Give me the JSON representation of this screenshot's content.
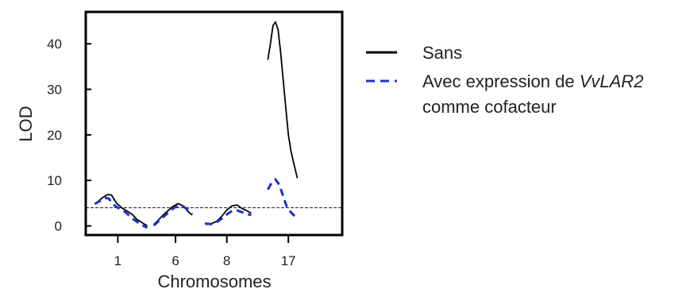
{
  "chart_data": {
    "type": "line",
    "ylabel": "LOD",
    "xlabel": "Chromosomes",
    "xlim": [
      0,
      20
    ],
    "ylim": [
      -2,
      47
    ],
    "yticks": [
      0,
      10,
      20,
      30,
      40
    ],
    "x_ticks": [
      {
        "pos": 2.5,
        "label": "1"
      },
      {
        "pos": 7.0,
        "label": "6"
      },
      {
        "pos": 11.0,
        "label": "8"
      },
      {
        "pos": 15.8,
        "label": "17"
      }
    ],
    "threshold": {
      "value": 4.0,
      "color": "#1a1a4a"
    },
    "grid": false,
    "legend_position": "right",
    "series": [
      {
        "name": "Sans",
        "color": "#000000",
        "dash": false,
        "segments": [
          [
            [
              0.9,
              5.2
            ],
            [
              1.3,
              6.2
            ],
            [
              1.7,
              6.9
            ],
            [
              2.0,
              6.8
            ],
            [
              2.4,
              5.0
            ],
            [
              2.8,
              4.0
            ],
            [
              3.2,
              3.3
            ],
            [
              3.6,
              2.6
            ],
            [
              4.0,
              1.4
            ],
            [
              4.4,
              0.7
            ],
            [
              4.8,
              0.0
            ]
          ],
          [
            [
              5.3,
              0.3
            ],
            [
              5.7,
              1.4
            ],
            [
              6.0,
              2.3
            ],
            [
              6.4,
              3.3
            ],
            [
              6.8,
              4.3
            ],
            [
              7.2,
              4.9
            ],
            [
              7.6,
              4.4
            ],
            [
              8.0,
              3.1
            ],
            [
              8.3,
              2.4
            ]
          ],
          [
            [
              9.3,
              0.6
            ],
            [
              9.8,
              0.5
            ],
            [
              10.2,
              1.0
            ],
            [
              10.6,
              2.1
            ],
            [
              11.0,
              3.5
            ],
            [
              11.4,
              4.4
            ],
            [
              11.8,
              4.6
            ],
            [
              12.2,
              3.8
            ],
            [
              12.6,
              3.3
            ],
            [
              12.9,
              2.8
            ]
          ],
          [
            [
              14.2,
              36.5
            ],
            [
              14.4,
              40.0
            ],
            [
              14.6,
              44.0
            ],
            [
              14.8,
              44.8
            ],
            [
              15.0,
              43.0
            ],
            [
              15.2,
              38.0
            ],
            [
              15.4,
              32.0
            ],
            [
              15.6,
              26.0
            ],
            [
              15.8,
              20.0
            ],
            [
              16.0,
              16.5
            ],
            [
              16.2,
              14.0
            ],
            [
              16.5,
              10.5
            ]
          ]
        ]
      },
      {
        "name": "Avec expression de VvLAR2 comme cofacteur",
        "name_prefix": "Avec expression de ",
        "name_italic": "VvLAR2",
        "name_line2": "comme cofacteur",
        "color": "#1a33c8",
        "dash": true,
        "segments": [
          [
            [
              0.7,
              4.8
            ],
            [
              1.1,
              5.5
            ],
            [
              1.5,
              6.2
            ],
            [
              1.8,
              6.0
            ],
            [
              2.1,
              4.8
            ],
            [
              2.5,
              4.0
            ],
            [
              2.9,
              3.5
            ],
            [
              3.3,
              2.5
            ],
            [
              3.7,
              1.5
            ],
            [
              4.1,
              0.7
            ],
            [
              4.5,
              0.0
            ],
            [
              4.8,
              -0.4
            ]
          ],
          [
            [
              5.3,
              0.1
            ],
            [
              5.7,
              1.1
            ],
            [
              6.1,
              2.1
            ],
            [
              6.5,
              3.1
            ],
            [
              6.9,
              4.0
            ],
            [
              7.3,
              4.5
            ],
            [
              7.7,
              4.1
            ],
            [
              8.1,
              3.3
            ],
            [
              8.3,
              2.6
            ]
          ],
          [
            [
              9.3,
              0.5
            ],
            [
              9.8,
              0.4
            ],
            [
              10.2,
              0.8
            ],
            [
              10.6,
              1.6
            ],
            [
              11.0,
              2.5
            ],
            [
              11.4,
              3.3
            ],
            [
              11.8,
              3.4
            ],
            [
              12.2,
              3.0
            ],
            [
              12.6,
              2.6
            ],
            [
              12.9,
              2.4
            ]
          ],
          [
            [
              14.2,
              8.0
            ],
            [
              14.5,
              9.5
            ],
            [
              14.8,
              10.2
            ],
            [
              15.1,
              9.0
            ],
            [
              15.4,
              6.5
            ],
            [
              15.7,
              4.0
            ],
            [
              16.0,
              3.0
            ],
            [
              16.4,
              1.8
            ]
          ]
        ]
      }
    ]
  }
}
